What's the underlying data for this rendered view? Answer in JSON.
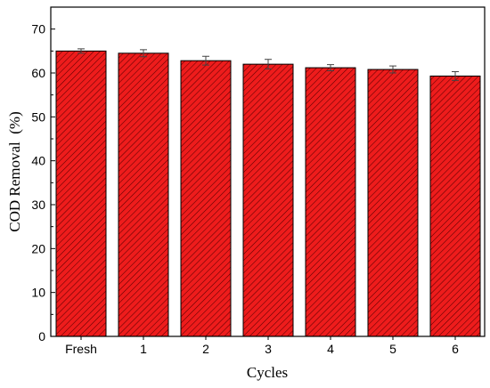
{
  "chart_data": {
    "type": "bar",
    "title": "",
    "xlabel": "Cycles",
    "ylabel": "COD Removal  (%)",
    "categories": [
      "Fresh",
      "1",
      "2",
      "3",
      "4",
      "5",
      "6"
    ],
    "values": [
      65.0,
      64.5,
      62.8,
      62.0,
      61.2,
      60.8,
      59.3
    ],
    "errors": [
      0.5,
      0.8,
      1.0,
      1.1,
      0.7,
      0.8,
      1.0
    ],
    "ylim": [
      0,
      75
    ],
    "yticks": [
      0,
      10,
      20,
      30,
      40,
      50,
      60,
      70
    ],
    "bar_color": "#ee1c1c",
    "hatch_color": "#5a0000",
    "grid": false
  }
}
